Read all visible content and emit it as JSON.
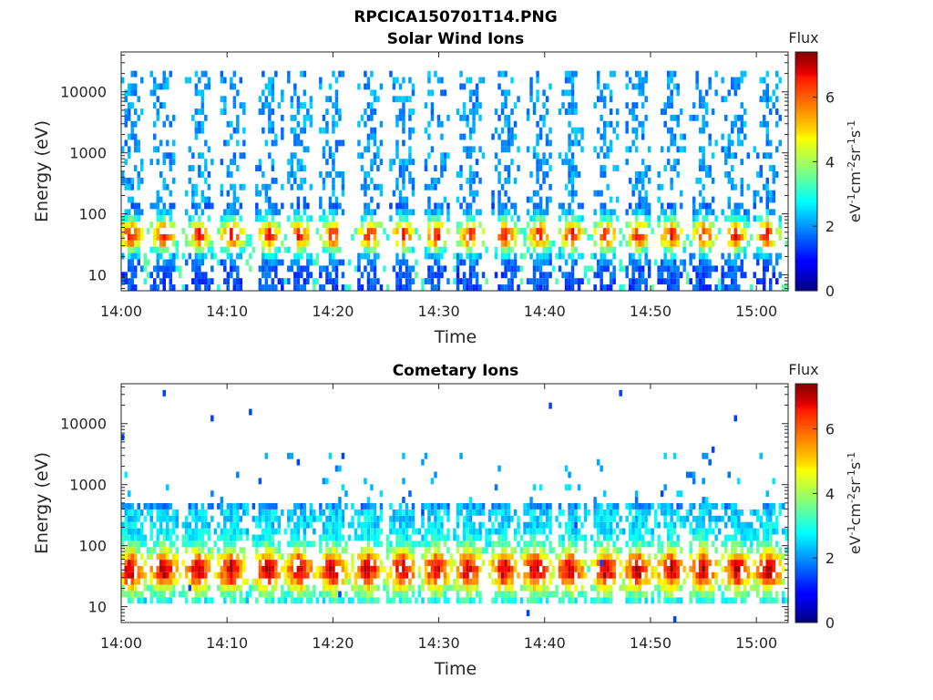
{
  "figure_title": "RPCICA150701T14.PNG",
  "colorbar": {
    "label": "Flux",
    "unit_parts": [
      {
        "t": "eV",
        "sup": false
      },
      {
        "t": "-1",
        "sup": true
      },
      {
        "t": "cm",
        "sup": false
      },
      {
        "t": "-2",
        "sup": true
      },
      {
        "t": "sr",
        "sup": false
      },
      {
        "t": "-1",
        "sup": true
      },
      {
        "t": "s",
        "sup": false
      },
      {
        "t": "-1",
        "sup": true
      }
    ],
    "ticks": [
      0,
      2,
      4,
      6
    ],
    "range": [
      0,
      7.4
    ],
    "colormap": "jet"
  },
  "chart_data": [
    {
      "type": "heatmap",
      "title": "Solar Wind Ions",
      "xlabel": "Time",
      "ylabel": "Energy (eV)",
      "x_ticks": [
        "14:00",
        "14:10",
        "14:20",
        "14:30",
        "14:40",
        "14:50",
        "15:00"
      ],
      "x_tick_minutes": [
        0,
        10,
        20,
        30,
        40,
        50,
        60
      ],
      "xlim_minutes": [
        0,
        63
      ],
      "y_scale": "log",
      "y_ticks": [
        "10",
        "100",
        "1000",
        "10000"
      ],
      "y_tick_values": [
        10,
        100,
        1000,
        10000
      ],
      "ylim": [
        5.5,
        45000
      ],
      "bursts_center_minutes": [
        0.9,
        4.0,
        7.4,
        10.5,
        14.0,
        16.8,
        20.0,
        23.5,
        26.6,
        29.8,
        33.0,
        36.3,
        39.5,
        42.6,
        45.8,
        48.9,
        52.0,
        55.0,
        58.0,
        61.0
      ],
      "peak_energy_eV": 45,
      "peak_flux": 6.6,
      "high_energy_tail_eV": 20000,
      "tail_flux": 2.0
    },
    {
      "type": "heatmap",
      "title": "Cometary Ions",
      "xlabel": "Time",
      "ylabel": "Energy (eV)",
      "x_ticks": [
        "14:00",
        "14:10",
        "14:20",
        "14:30",
        "14:40",
        "14:50",
        "15:00"
      ],
      "x_tick_minutes": [
        0,
        10,
        20,
        30,
        40,
        50,
        60
      ],
      "xlim_minutes": [
        0,
        63
      ],
      "y_scale": "log",
      "y_ticks": [
        "10",
        "100",
        "1000",
        "10000"
      ],
      "y_tick_values": [
        10,
        100,
        1000,
        10000
      ],
      "ylim": [
        5.5,
        45000
      ],
      "bursts_center_minutes": [
        0.9,
        4.0,
        7.2,
        10.4,
        13.9,
        16.8,
        20.0,
        23.3,
        26.6,
        29.8,
        32.8,
        36.2,
        39.2,
        42.4,
        45.8,
        48.8,
        52.0,
        55.0,
        58.2,
        61.2
      ],
      "peak_energy_eV": 40,
      "peak_flux": 7.2,
      "high_energy_tail_eV": 2000,
      "tail_flux": 3.0
    }
  ]
}
